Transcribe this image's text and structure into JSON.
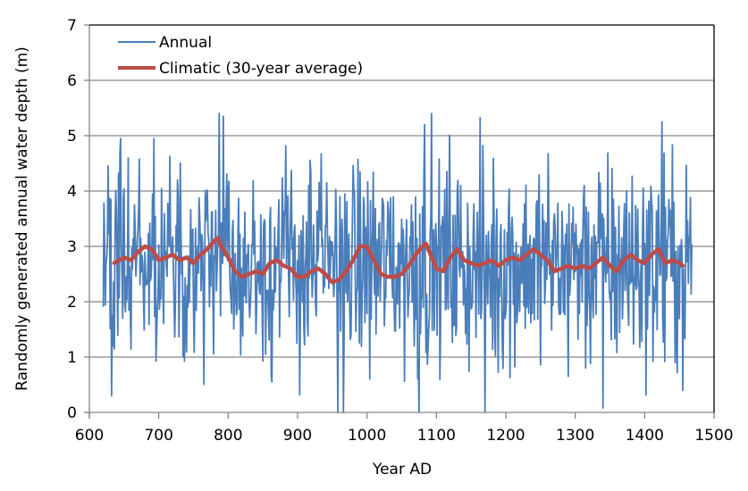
{
  "chart_data": {
    "type": "line",
    "title": "",
    "xlabel": "Year AD",
    "ylabel": "Randomly generated annual water depth (m)",
    "xlim": [
      600,
      1500
    ],
    "ylim": [
      0,
      7
    ],
    "xticks": [
      600,
      700,
      800,
      900,
      1000,
      1100,
      1200,
      1300,
      1400,
      1500
    ],
    "yticks": [
      0,
      1,
      2,
      3,
      4,
      5,
      6,
      7
    ],
    "grid": "horizontal",
    "legend": "top-left",
    "colors": {
      "annual": "#4a7ebb",
      "climatic": "#be4b48",
      "grid": "#868686",
      "frame": "#000000"
    },
    "series": [
      {
        "name": "Annual",
        "x_start": 620,
        "x_end": 1468,
        "x_step": 1,
        "generator": {
          "mean": 2.7,
          "spread": 0.95,
          "min": 0,
          "max": 5.4,
          "seed": 17
        },
        "highlights": [
          {
            "x": 632,
            "y": 0.3
          },
          {
            "x": 645,
            "y": 4.95
          },
          {
            "x": 693,
            "y": 4.95
          },
          {
            "x": 787,
            "y": 5.42
          },
          {
            "x": 793,
            "y": 5.35
          },
          {
            "x": 958,
            "y": 0.0
          },
          {
            "x": 1075,
            "y": 0.0
          },
          {
            "x": 1083,
            "y": 5.2
          },
          {
            "x": 1170,
            "y": 0.0
          },
          {
            "x": 1425,
            "y": 5.25
          },
          {
            "x": 1340,
            "y": 0.08
          },
          {
            "x": 1455,
            "y": 0.4
          }
        ]
      },
      {
        "name": "Climatic (30-year average)",
        "x": [
          636,
          650,
          660,
          670,
          680,
          690,
          700,
          710,
          720,
          730,
          740,
          750,
          760,
          770,
          780,
          785,
          790,
          800,
          810,
          820,
          830,
          840,
          850,
          860,
          870,
          880,
          890,
          900,
          910,
          920,
          930,
          940,
          950,
          960,
          970,
          980,
          990,
          1000,
          1010,
          1020,
          1030,
          1040,
          1050,
          1060,
          1070,
          1080,
          1085,
          1090,
          1100,
          1110,
          1120,
          1130,
          1140,
          1150,
          1160,
          1170,
          1180,
          1190,
          1200,
          1210,
          1220,
          1230,
          1240,
          1250,
          1260,
          1270,
          1280,
          1290,
          1300,
          1310,
          1320,
          1330,
          1340,
          1350,
          1360,
          1370,
          1380,
          1390,
          1400,
          1410,
          1420,
          1430,
          1440,
          1450,
          1455
        ],
        "values": [
          2.7,
          2.8,
          2.75,
          2.9,
          3.0,
          2.95,
          2.75,
          2.8,
          2.85,
          2.75,
          2.8,
          2.7,
          2.85,
          2.95,
          3.1,
          3.15,
          3.0,
          2.8,
          2.55,
          2.45,
          2.5,
          2.55,
          2.5,
          2.7,
          2.75,
          2.65,
          2.6,
          2.45,
          2.45,
          2.55,
          2.6,
          2.5,
          2.35,
          2.4,
          2.55,
          2.75,
          3.0,
          3.0,
          2.75,
          2.5,
          2.45,
          2.45,
          2.5,
          2.65,
          2.85,
          3.0,
          3.05,
          2.9,
          2.6,
          2.55,
          2.8,
          2.95,
          2.75,
          2.7,
          2.65,
          2.7,
          2.75,
          2.65,
          2.75,
          2.8,
          2.75,
          2.85,
          2.95,
          2.85,
          2.75,
          2.55,
          2.6,
          2.65,
          2.6,
          2.65,
          2.6,
          2.7,
          2.8,
          2.65,
          2.55,
          2.75,
          2.85,
          2.75,
          2.7,
          2.85,
          2.95,
          2.7,
          2.75,
          2.7,
          2.65
        ]
      }
    ]
  }
}
